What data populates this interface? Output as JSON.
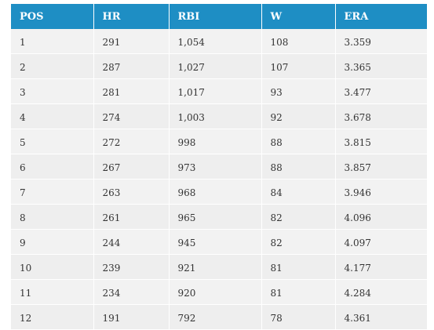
{
  "table": {
    "headers": [
      "POS",
      "HR",
      "RBI",
      "W",
      "ERA"
    ],
    "rows": [
      [
        "1",
        "291",
        "1,054",
        "108",
        "3.359"
      ],
      [
        "2",
        "287",
        "1,027",
        "107",
        "3.365"
      ],
      [
        "3",
        "281",
        "1,017",
        "93",
        "3.477"
      ],
      [
        "4",
        "274",
        "1,003",
        "92",
        "3.678"
      ],
      [
        "5",
        "272",
        "998",
        "88",
        "3.815"
      ],
      [
        "6",
        "267",
        "973",
        "88",
        "3.857"
      ],
      [
        "7",
        "263",
        "968",
        "84",
        "3.946"
      ],
      [
        "8",
        "261",
        "965",
        "82",
        "4.096"
      ],
      [
        "9",
        "244",
        "945",
        "82",
        "4.097"
      ],
      [
        "10",
        "239",
        "921",
        "81",
        "4.177"
      ],
      [
        "11",
        "234",
        "920",
        "81",
        "4.284"
      ],
      [
        "12",
        "191",
        "792",
        "78",
        "4.361"
      ]
    ]
  },
  "colors": {
    "header_bg": "#1e8ec4",
    "header_text": "#ffffff",
    "row_bg": "#f2f2f2",
    "cell_text": "#333333"
  }
}
